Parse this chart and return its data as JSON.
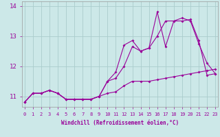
{
  "xlabel": "Windchill (Refroidissement éolien,°C)",
  "background_color": "#cce8e8",
  "grid_color": "#aacccc",
  "line_color": "#990099",
  "x_hours": [
    0,
    1,
    2,
    3,
    4,
    5,
    6,
    7,
    8,
    9,
    10,
    11,
    12,
    13,
    14,
    15,
    16,
    17,
    18,
    19,
    20,
    21,
    22,
    23
  ],
  "series1": [
    10.8,
    11.1,
    11.1,
    11.2,
    11.1,
    10.9,
    10.9,
    10.9,
    10.9,
    11.0,
    11.1,
    11.15,
    11.35,
    11.5,
    11.5,
    11.5,
    11.55,
    11.6,
    11.65,
    11.7,
    11.75,
    11.8,
    11.85,
    11.9
  ],
  "series2": [
    10.8,
    11.1,
    11.1,
    11.2,
    11.1,
    10.9,
    10.9,
    10.9,
    10.9,
    11.0,
    11.5,
    11.8,
    12.7,
    12.85,
    12.5,
    12.6,
    13.8,
    12.65,
    13.5,
    13.6,
    13.5,
    12.75,
    12.1,
    11.75
  ],
  "series3": [
    10.8,
    11.1,
    11.1,
    11.2,
    11.1,
    10.9,
    10.9,
    10.9,
    10.9,
    11.0,
    11.5,
    11.6,
    12.0,
    12.65,
    12.5,
    12.6,
    13.0,
    13.5,
    13.5,
    13.5,
    13.55,
    12.85,
    11.7,
    11.75
  ],
  "ylim": [
    10.65,
    14.15
  ],
  "yticks": [
    11,
    12,
    13,
    14
  ],
  "xlim": [
    -0.3,
    23.3
  ],
  "xtick_labels": [
    "0",
    "1",
    "2",
    "3",
    "4",
    "5",
    "6",
    "7",
    "8",
    "9",
    "10",
    "11",
    "12",
    "13",
    "14",
    "15",
    "16",
    "17",
    "18",
    "19",
    "20",
    "21",
    "22",
    "23"
  ]
}
